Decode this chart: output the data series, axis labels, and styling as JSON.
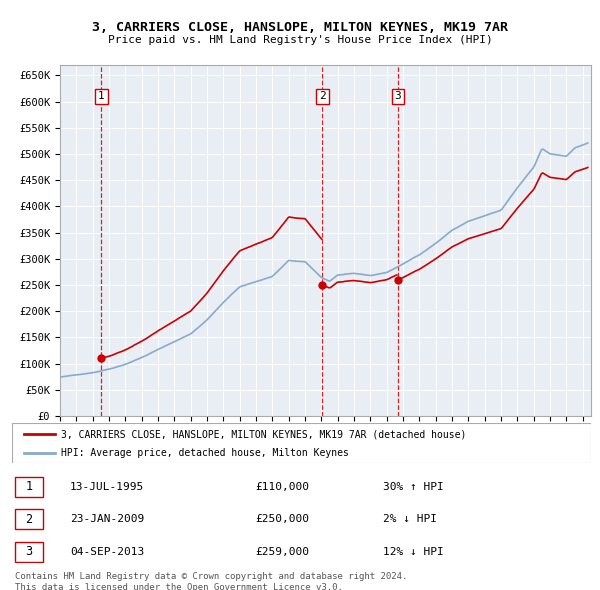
{
  "title": "3, CARRIERS CLOSE, HANSLOPE, MILTON KEYNES, MK19 7AR",
  "subtitle": "Price paid vs. HM Land Registry's House Price Index (HPI)",
  "ylabel_ticks": [
    0,
    50000,
    100000,
    150000,
    200000,
    250000,
    300000,
    350000,
    400000,
    450000,
    500000,
    550000,
    600000,
    650000
  ],
  "ylim": [
    0,
    670000
  ],
  "xlim_start": 1993.0,
  "xlim_end": 2025.5,
  "sales": [
    {
      "num": 1,
      "date": "13-JUL-1995",
      "price": 110000,
      "year": 1995.54,
      "hpi_pct": "30% ↑ HPI"
    },
    {
      "num": 2,
      "date": "23-JAN-2009",
      "price": 250000,
      "year": 2009.06,
      "hpi_pct": "2% ↓ HPI"
    },
    {
      "num": 3,
      "date": "04-SEP-2013",
      "price": 259000,
      "year": 2013.67,
      "hpi_pct": "12% ↓ HPI"
    }
  ],
  "legend_line1": "3, CARRIERS CLOSE, HANSLOPE, MILTON KEYNES, MK19 7AR (detached house)",
  "legend_line2": "HPI: Average price, detached house, Milton Keynes",
  "footer1": "Contains HM Land Registry data © Crown copyright and database right 2024.",
  "footer2": "This data is licensed under the Open Government Licence v3.0.",
  "red_color": "#cc0000",
  "blue_color": "#88aacc",
  "grid_color": "#c8d8e8",
  "bg_color": "#e8eef4"
}
